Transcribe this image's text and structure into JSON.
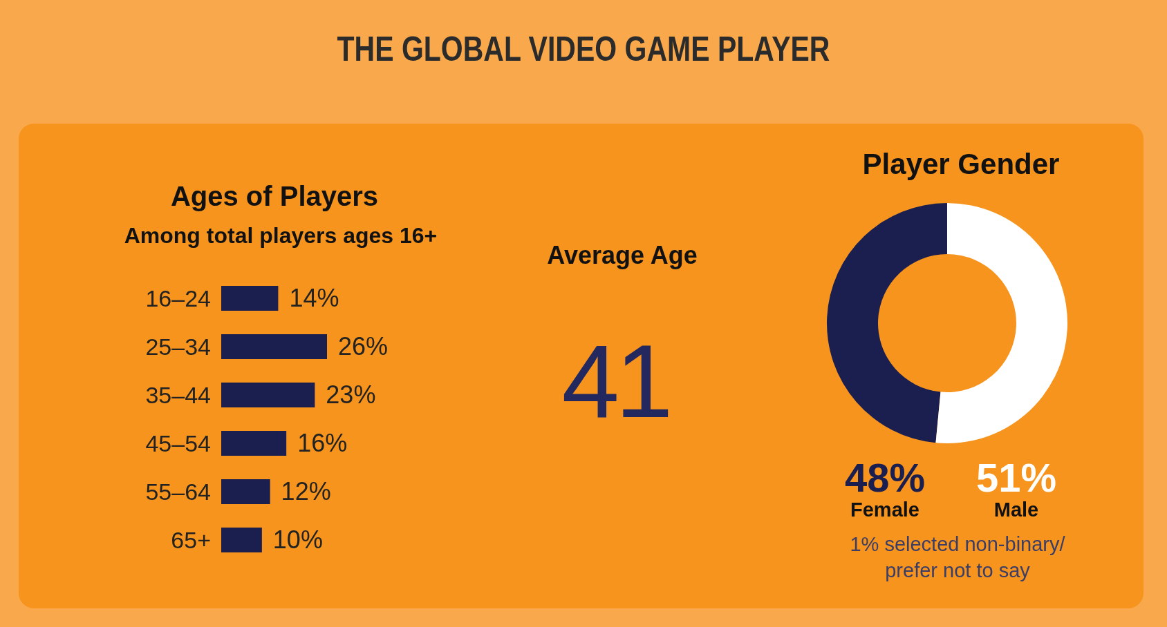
{
  "chart_data": [
    {
      "type": "other",
      "title": "THE GLOBAL VIDEO GAME PLAYER"
    },
    {
      "type": "bar",
      "orientation": "horizontal",
      "title": "Ages of Players",
      "subtitle": "Among total players ages 16+",
      "categories": [
        "16–24",
        "25–34",
        "35–44",
        "45–54",
        "55–64",
        "65+"
      ],
      "values": [
        14,
        26,
        23,
        16,
        12,
        10
      ],
      "color": "#1b1f4f",
      "data_labels": true,
      "value_labels": [
        "14%",
        "26%",
        "23%",
        "16%",
        "12%",
        "10%"
      ]
    },
    {
      "type": "other",
      "title": "Average Age",
      "annotations": [
        "41"
      ]
    },
    {
      "type": "donut",
      "title": "Player Gender",
      "categories": [
        "Female",
        "Male"
      ],
      "values": [
        48,
        51
      ],
      "colors": [
        "#1b1f4f",
        "#ffffff"
      ],
      "data_labels": true,
      "value_labels": [
        "48%",
        "51%"
      ],
      "annotations": [
        "1% selected non-binary/",
        "prefer not to say"
      ]
    }
  ]
}
